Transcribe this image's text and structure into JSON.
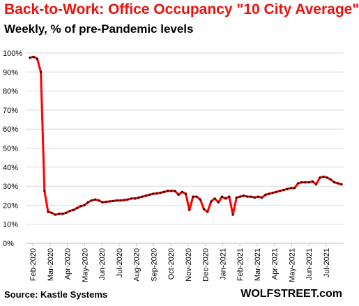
{
  "colors": {
    "title": "#e8130e",
    "line": "#ff0000",
    "marker": "#3a0000",
    "grid": "#d9d9d9"
  },
  "chart_data": {
    "type": "line",
    "title": "Back-to-Work:  Office Occupancy \"10 City Average\"",
    "subtitle": "Weekly, % of pre-Pandemic levels",
    "xlabel": "",
    "ylabel": "",
    "ylim": [
      0,
      100
    ],
    "y_ticks": [
      "0%",
      "10%",
      "20%",
      "30%",
      "40%",
      "50%",
      "60%",
      "70%",
      "80%",
      "90%",
      "100%"
    ],
    "x_ticks": [
      "Feb-2020",
      "Mar-2020",
      "Apr-2020",
      "May-2020",
      "Jun-2020",
      "Jul-2020",
      "Aug-2020",
      "Sep-2020",
      "Oct-2020",
      "Nov-2020",
      "Dec-2020",
      "Jan-2021",
      "Feb-2021",
      "Mar-2021",
      "Apr-2021",
      "May-2021",
      "Jun-2021",
      "Jul-2021"
    ],
    "grid": "horizontal",
    "legend": "none",
    "series": [
      {
        "values": [
          97.5,
          98,
          97,
          90,
          27.5,
          16.5,
          16,
          15,
          15.5,
          15.5,
          16,
          17,
          17.5,
          18.5,
          19.5,
          20,
          21.5,
          22.5,
          23,
          22.5,
          21.5,
          21.8,
          22,
          22.2,
          22.5,
          22.5,
          22.7,
          23,
          23.5,
          23.5,
          24,
          24.5,
          25,
          25.5,
          26,
          26.2,
          26.5,
          27,
          27.5,
          27.5,
          27.5,
          25.5,
          27,
          26,
          17.5,
          24.5,
          24.5,
          23,
          18,
          16.5,
          22,
          23.5,
          21.5,
          24.5,
          23.5,
          24.5,
          15,
          24,
          24.5,
          25,
          24.5,
          24.5,
          24,
          24.5,
          24,
          25.5,
          26,
          26.5,
          27,
          27.5,
          28,
          28.5,
          29,
          29,
          31.5,
          32,
          32,
          32,
          32.5,
          31,
          34.5,
          35,
          34.5,
          33.5,
          32,
          31.5,
          31
        ]
      }
    ]
  },
  "source": "Source: Kastle Systems",
  "brand": "WOLFSTREET.com"
}
